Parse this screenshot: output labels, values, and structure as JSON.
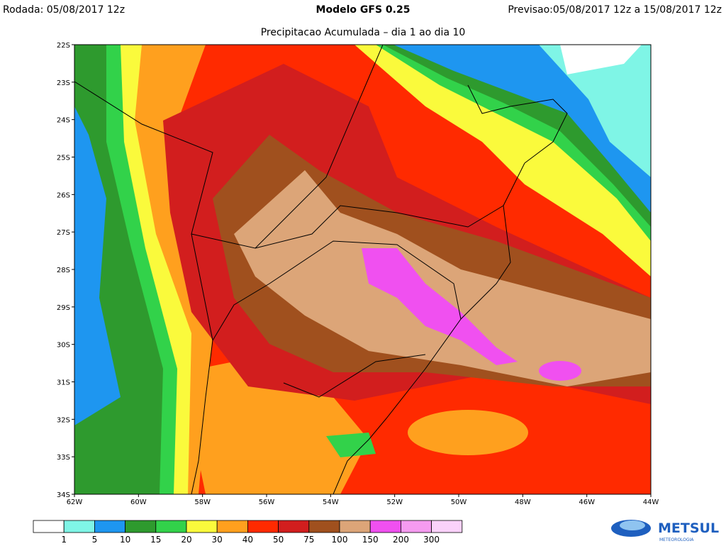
{
  "header": {
    "run": "Rodada: 05/08/2017 12z",
    "model": "Modelo GFS 0.25",
    "forecast": "Previsao:05/08/2017 12z a 15/08/2017 12z",
    "subtitle": "Precipitacao Acumulada – dia 1 ao dia 10"
  },
  "map": {
    "lat_labels": [
      "22S",
      "23S",
      "24S",
      "25S",
      "26S",
      "27S",
      "28S",
      "29S",
      "30S",
      "31S",
      "32S",
      "33S",
      "34S"
    ],
    "lon_labels": [
      "62W",
      "60W",
      "58W",
      "56W",
      "54W",
      "52W",
      "50W",
      "48W",
      "46W",
      "44W"
    ]
  },
  "legend": {
    "colors": [
      "#ffffff",
      "#7ff5e6",
      "#1e96f0",
      "#2e9a2e",
      "#32d24a",
      "#fafa3c",
      "#ffa01e",
      "#ff2a00",
      "#d21e1e",
      "#a0501e",
      "#dca578",
      "#f050f0",
      "#f59bf0",
      "#fad2fa"
    ],
    "labels": [
      "1",
      "5",
      "10",
      "15",
      "20",
      "30",
      "40",
      "50",
      "75",
      "100",
      "150",
      "200",
      "300"
    ]
  },
  "logo": {
    "name": "METSUL",
    "tagline": "METEOROLOGIA"
  }
}
